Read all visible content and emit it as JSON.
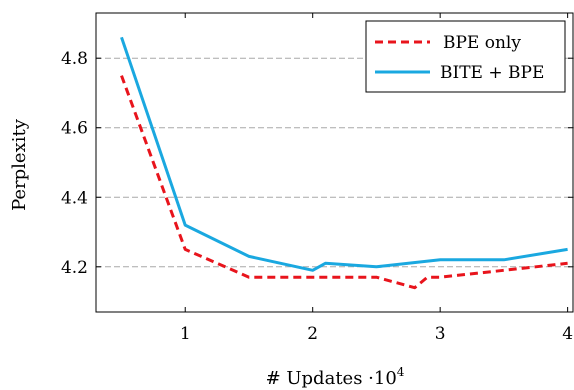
{
  "chart_data": {
    "type": "line",
    "title": "",
    "xlabel": "# Updates ·10",
    "xlabel_exponent": "4",
    "ylabel": "Perplexity",
    "xlim": [
      0.3,
      4.05
    ],
    "ylim": [
      4.07,
      4.93
    ],
    "x_ticks": [
      1,
      2,
      3,
      4
    ],
    "y_ticks": [
      4.2,
      4.4,
      4.6,
      4.8
    ],
    "grid": "horizontal dashed",
    "legend_position": "top-right",
    "series": [
      {
        "name": "BPE only",
        "color": "#e8141c",
        "style": "dashed",
        "x": [
          0.5,
          1.0,
          1.5,
          2.0,
          2.1,
          2.5,
          2.8,
          2.9,
          3.0,
          3.5,
          4.0
        ],
        "y": [
          4.75,
          4.25,
          4.17,
          4.17,
          4.17,
          4.17,
          4.14,
          4.17,
          4.17,
          4.19,
          4.21
        ]
      },
      {
        "name": "BITE + BPE",
        "color": "#1aa8e0",
        "style": "solid",
        "x": [
          0.5,
          1.0,
          1.5,
          2.0,
          2.1,
          2.5,
          3.0,
          3.5,
          4.0
        ],
        "y": [
          4.86,
          4.32,
          4.23,
          4.19,
          4.21,
          4.2,
          4.22,
          4.22,
          4.25
        ]
      }
    ]
  }
}
